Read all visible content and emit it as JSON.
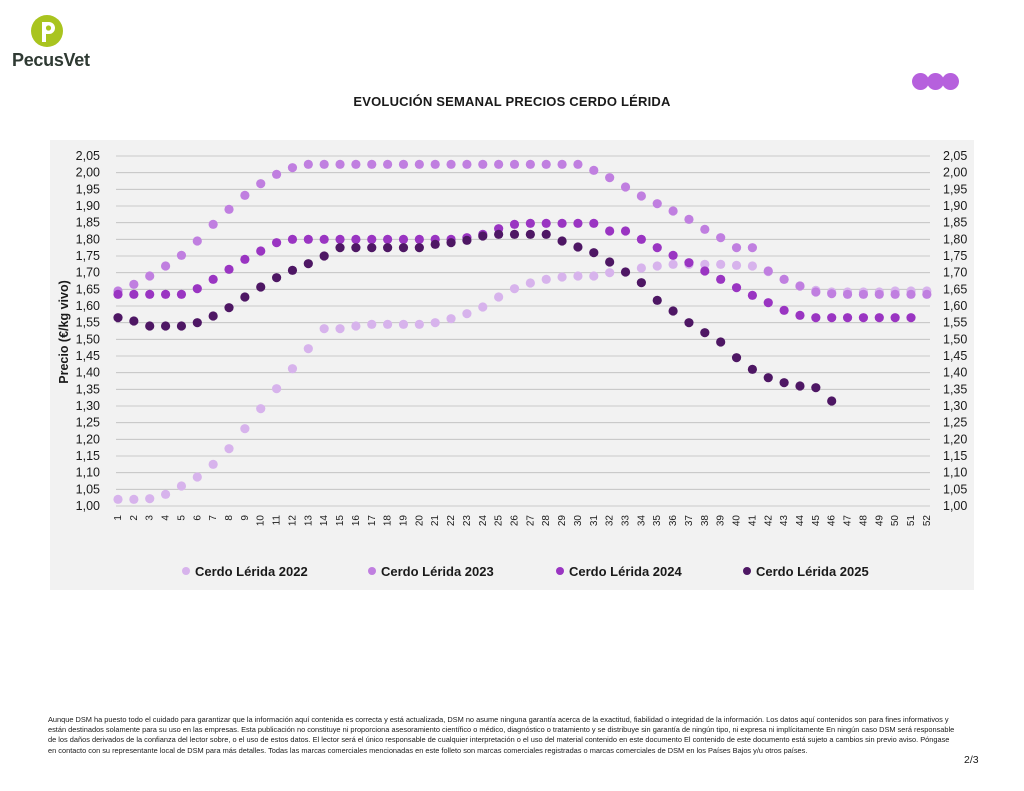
{
  "header": {
    "brand": "PecusVet",
    "title": "EVOLUCIÓN SEMANAL PRECIOS CERDO LÉRIDA"
  },
  "footer": {
    "disclaimer": "Aunque DSM ha puesto todo el cuidado para garantizar que la información aquí contenida es correcta y está actualizada, DSM no asume ninguna garantía acerca de la exactitud, fiabilidad o integridad de la información. Los datos aquí contenidos son para fines informativos y están destinados solamente para su uso en las empresas. Esta publicación no constituye ni proporciona asesoramiento científico o médico, diagnóstico o tratamiento y se distribuye sin garantía de ningún tipo, ni expresa ni implícitamente En ningún caso DSM será responsable de los daños derivados de la confianza del lector sobre, o el uso de estos datos. El lector será el único responsable de cualquier interpretación o el uso del material contenido en este documento El contenido de este documento está sujeto a cambios sin previo aviso. Póngase en contacto con su representante local de DSM para más detalles. Todas las marcas comerciales mencionadas en este folleto son marcas comerciales registradas o marcas comerciales de DSM en los Países Bajos y/u otros países.",
    "page": "2/3"
  },
  "colors": {
    "brand_green": "#a9c41f",
    "brand_text": "#2f3a33",
    "dots": "#b660dd",
    "panel": "#f2f2f2",
    "grid": "#bdbdbd"
  },
  "chart_data": {
    "type": "scatter",
    "title": "EVOLUCIÓN SEMANAL PRECIOS CERDO LÉRIDA",
    "xlabel": "",
    "ylabel": "Precio (€/kg vivo)",
    "ylim": [
      1.0,
      2.05
    ],
    "yticks": [
      "1,00",
      "1,05",
      "1,10",
      "1,15",
      "1,20",
      "1,25",
      "1,30",
      "1,35",
      "1,40",
      "1,45",
      "1,50",
      "1,55",
      "1,60",
      "1,65",
      "1,70",
      "1,75",
      "1,80",
      "1,85",
      "1,90",
      "1,95",
      "2,00",
      "2,05"
    ],
    "x": [
      1,
      2,
      3,
      4,
      5,
      6,
      7,
      8,
      9,
      10,
      11,
      12,
      13,
      14,
      15,
      16,
      17,
      18,
      19,
      20,
      21,
      22,
      23,
      24,
      25,
      26,
      27,
      28,
      29,
      30,
      31,
      32,
      33,
      34,
      35,
      36,
      37,
      38,
      39,
      40,
      41,
      42,
      43,
      44,
      45,
      46,
      47,
      48,
      49,
      50,
      51,
      52
    ],
    "grid": true,
    "legend_position": "bottom",
    "series": [
      {
        "name": "Cerdo Lérida 2022",
        "color": "#d7b3ec",
        "values": [
          1.02,
          1.02,
          1.022,
          1.035,
          1.06,
          1.087,
          1.125,
          1.172,
          1.232,
          1.292,
          1.352,
          1.412,
          1.472,
          1.532,
          1.532,
          1.54,
          1.545,
          1.545,
          1.545,
          1.545,
          1.55,
          1.562,
          1.577,
          1.597,
          1.627,
          1.652,
          1.669,
          1.68,
          1.687,
          1.69,
          1.69,
          1.7,
          1.702,
          1.714,
          1.72,
          1.725,
          1.725,
          1.725,
          1.725,
          1.722,
          1.72,
          1.703,
          1.68,
          1.66,
          1.647,
          1.642,
          1.642,
          1.642,
          1.642,
          1.645,
          1.645,
          1.645
        ]
      },
      {
        "name": "Cerdo Lérida 2023",
        "color": "#c07fe0",
        "values": [
          1.645,
          1.665,
          1.69,
          1.72,
          1.752,
          1.795,
          1.845,
          1.89,
          1.932,
          1.967,
          1.995,
          2.015,
          2.025,
          2.025,
          2.025,
          2.025,
          2.025,
          2.025,
          2.025,
          2.025,
          2.025,
          2.025,
          2.025,
          2.025,
          2.025,
          2.025,
          2.025,
          2.025,
          2.025,
          2.025,
          2.007,
          1.985,
          1.957,
          1.93,
          1.907,
          1.885,
          1.86,
          1.83,
          1.805,
          1.775,
          1.775,
          1.705,
          1.68,
          1.66,
          1.642,
          1.637,
          1.635,
          1.635,
          1.635,
          1.635,
          1.635,
          1.635
        ]
      },
      {
        "name": "Cerdo Lérida 2024",
        "color": "#9a35c2",
        "values": [
          1.635,
          1.635,
          1.635,
          1.635,
          1.635,
          1.652,
          1.68,
          1.71,
          1.74,
          1.765,
          1.79,
          1.8,
          1.8,
          1.8,
          1.8,
          1.8,
          1.8,
          1.8,
          1.8,
          1.8,
          1.8,
          1.8,
          1.805,
          1.815,
          1.832,
          1.845,
          1.848,
          1.848,
          1.848,
          1.848,
          1.848,
          1.825,
          1.825,
          1.8,
          1.775,
          1.752,
          1.73,
          1.705,
          1.68,
          1.655,
          1.632,
          1.61,
          1.587,
          1.572,
          1.565,
          1.565,
          1.565,
          1.565,
          1.565,
          1.565,
          1.565,
          null
        ]
      },
      {
        "name": "Cerdo Lérida 2025",
        "color": "#4e1764",
        "values": [
          1.565,
          1.555,
          1.54,
          1.54,
          1.54,
          1.55,
          1.57,
          1.595,
          1.627,
          1.657,
          1.685,
          1.707,
          1.727,
          1.75,
          1.775,
          1.775,
          1.775,
          1.775,
          1.775,
          1.775,
          1.785,
          1.79,
          1.797,
          1.81,
          1.815,
          1.815,
          1.815,
          1.815,
          1.795,
          1.777,
          1.76,
          1.732,
          1.702,
          1.67,
          1.617,
          1.585,
          1.55,
          1.52,
          1.492,
          1.445,
          1.41,
          1.385,
          1.37,
          1.36,
          1.355,
          1.315,
          null,
          null,
          null,
          null,
          null,
          null
        ]
      }
    ]
  }
}
